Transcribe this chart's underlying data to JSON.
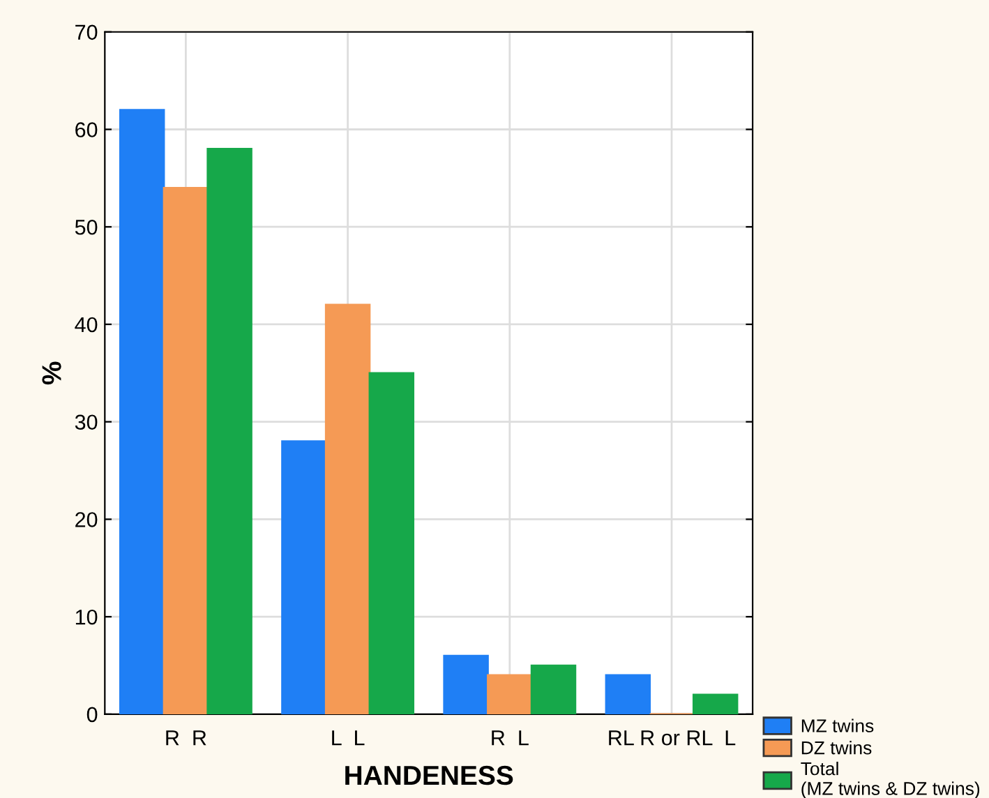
{
  "chart_data": {
    "type": "bar",
    "xlabel": "HANDENESS",
    "ylabel": "%",
    "categories": [
      "R  R",
      "L  L",
      "R  L",
      "RL R or RL  L"
    ],
    "series": [
      {
        "name": "MZ twins",
        "color": "#1f7ff5",
        "values": [
          62,
          28,
          6,
          4
        ]
      },
      {
        "name": "DZ twins",
        "color": "#f59a55",
        "values": [
          54,
          42,
          4,
          0
        ]
      },
      {
        "name": "Total\n(MZ twins & DZ twins)",
        "color": "#16a84a",
        "values": [
          58,
          35,
          5,
          2
        ]
      }
    ],
    "ylim": [
      0,
      70
    ],
    "yticks": [
      0,
      10,
      20,
      30,
      40,
      50,
      60,
      70
    ],
    "grid": true,
    "legend": "bottom right"
  }
}
